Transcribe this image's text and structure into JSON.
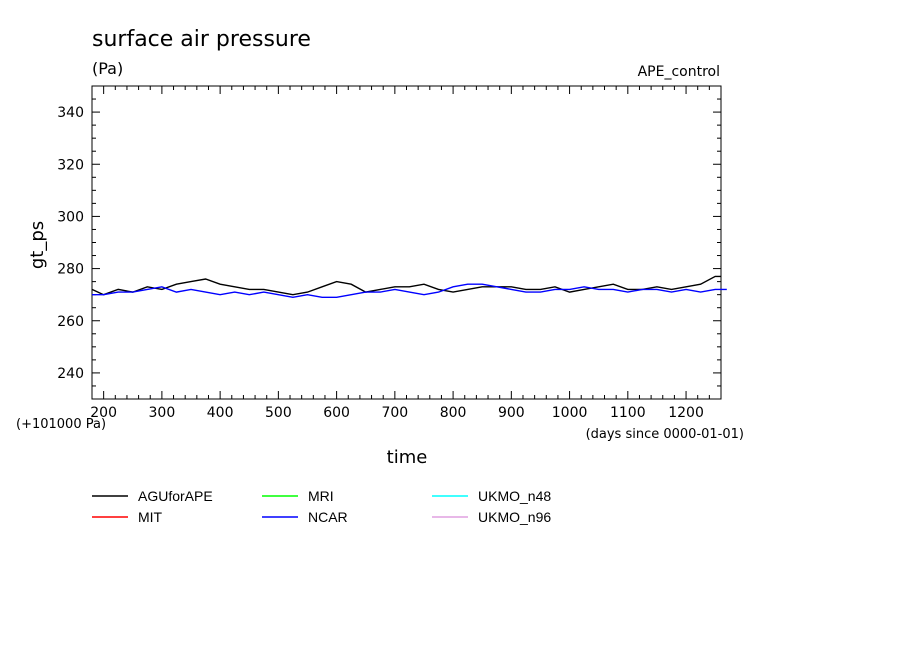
{
  "chart_data": {
    "type": "line",
    "title": "surface air pressure",
    "units": "(Pa)",
    "experiment": "APE_control",
    "xlabel": "time",
    "x_units": "(days since 0000-01-01)",
    "ylabel": "gt_ps",
    "y_offset_label": "(+101000 Pa)",
    "xlim": [
      180,
      1260
    ],
    "ylim": [
      230,
      350
    ],
    "xticks": [
      200,
      300,
      400,
      500,
      600,
      700,
      800,
      900,
      1000,
      1100,
      1200
    ],
    "yticks": [
      240,
      260,
      280,
      300,
      320,
      340
    ],
    "grid": false,
    "legend_position": "below",
    "series": [
      {
        "name": "AGUforAPE",
        "color": "#000000",
        "x": [
          180,
          200,
          225,
          250,
          275,
          300,
          325,
          350,
          375,
          400,
          425,
          450,
          475,
          500,
          525,
          550,
          575,
          600,
          625,
          650,
          675,
          700,
          725,
          750,
          775,
          800,
          825,
          850,
          875,
          900,
          925,
          950,
          975,
          1000,
          1025,
          1050,
          1075,
          1100,
          1125,
          1150,
          1175,
          1200,
          1225,
          1250,
          1260
        ],
        "values": [
          272,
          270,
          272,
          271,
          273,
          272,
          274,
          275,
          276,
          274,
          273,
          272,
          272,
          271,
          270,
          271,
          273,
          275,
          274,
          271,
          272,
          273,
          273,
          274,
          272,
          271,
          272,
          273,
          273,
          273,
          272,
          272,
          273,
          271,
          272,
          273,
          274,
          272,
          272,
          273,
          272,
          273,
          274,
          277,
          277
        ]
      },
      {
        "name": "MIT",
        "color": "#ff0000",
        "x": [],
        "values": []
      },
      {
        "name": "MRI",
        "color": "#00ff00",
        "x": [],
        "values": []
      },
      {
        "name": "NCAR",
        "color": "#0000ff",
        "x": [
          180,
          200,
          225,
          250,
          275,
          300,
          325,
          350,
          375,
          400,
          425,
          450,
          475,
          500,
          525,
          550,
          575,
          600,
          625,
          650,
          675,
          700,
          725,
          750,
          775,
          800,
          825,
          850,
          875,
          900,
          925,
          950,
          975,
          1000,
          1025,
          1050,
          1075,
          1100,
          1125,
          1150,
          1175,
          1200,
          1225,
          1250,
          1270
        ],
        "values": [
          270,
          270,
          271,
          271,
          272,
          273,
          271,
          272,
          271,
          270,
          271,
          270,
          271,
          270,
          269,
          270,
          269,
          269,
          270,
          271,
          271,
          272,
          271,
          270,
          271,
          273,
          274,
          274,
          273,
          272,
          271,
          271,
          272,
          272,
          273,
          272,
          272,
          271,
          272,
          272,
          271,
          272,
          271,
          272,
          272
        ]
      },
      {
        "name": "UKMO_n48",
        "color": "#00ffff",
        "x": [],
        "values": []
      },
      {
        "name": "UKMO_n96",
        "color": "#e0a0e0",
        "x": [],
        "values": []
      }
    ]
  }
}
